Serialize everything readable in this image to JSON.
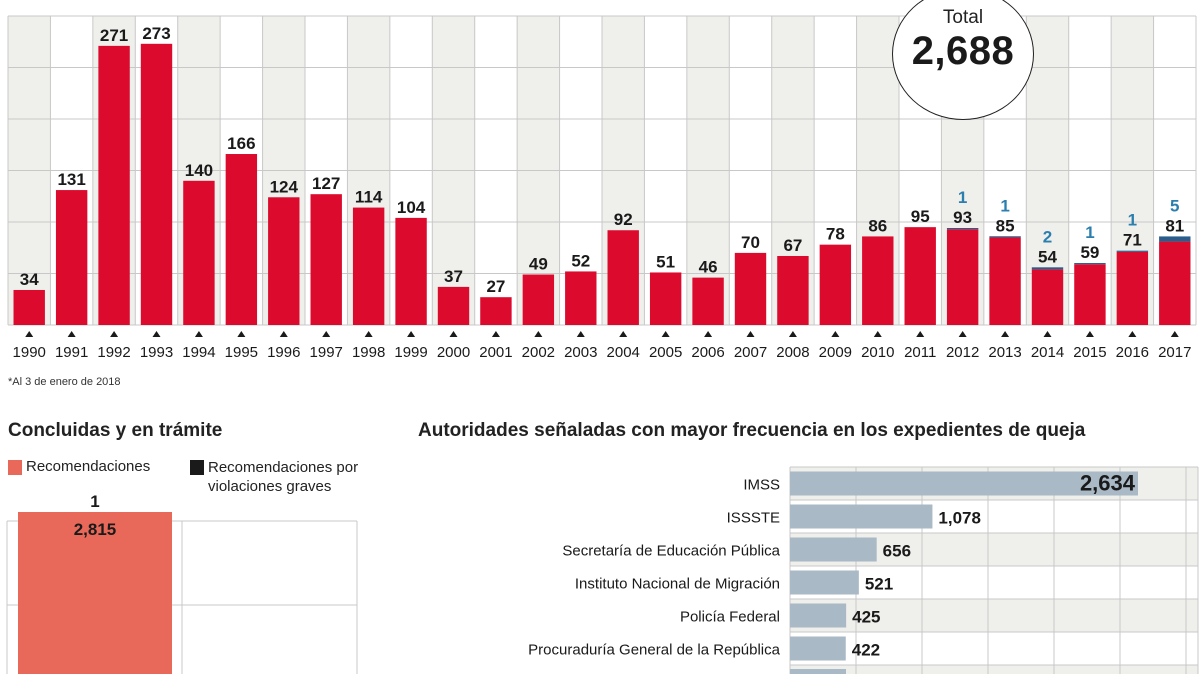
{
  "total": {
    "label": "Total",
    "value": "2,688"
  },
  "footnote": "*Al 3 de enero de 2018",
  "colors": {
    "bar_red": "#dc0a2d",
    "bar_blue": "#2a5d8a",
    "secondary_label": "#2b7fae",
    "recommend_salmon": "#e8695a",
    "grave_black": "#1a1a1a",
    "hbar_gray": "#a9b9c6",
    "grid": "#c8c8c8",
    "shade": "#efefeb"
  },
  "left_panel": {
    "title": "Concluidas y en trámite",
    "legend": [
      {
        "label": "Recomendaciones",
        "color": "#e8695a"
      },
      {
        "label": "Recomendaciones por violaciones graves",
        "color": "#1a1a1a"
      }
    ]
  },
  "right_panel": {
    "title": "Autoridades señaladas con mayor frecuencia en los expedientes de queja"
  },
  "chart_data": [
    {
      "type": "bar",
      "title": "",
      "xlabel": "",
      "ylabel": "",
      "ylim": [
        0,
        300
      ],
      "grid": true,
      "categories": [
        "1990",
        "1991",
        "1992",
        "1993",
        "1994",
        "1995",
        "1996",
        "1997",
        "1998",
        "1999",
        "2000",
        "2001",
        "2002",
        "2003",
        "2004",
        "2005",
        "2006",
        "2007",
        "2008",
        "2009",
        "2010",
        "2011",
        "2012",
        "2013",
        "2014",
        "2015",
        "2016",
        "2017"
      ],
      "series": [
        {
          "name": "Recomendaciones",
          "values": [
            34,
            131,
            271,
            273,
            140,
            166,
            124,
            127,
            114,
            104,
            37,
            27,
            49,
            52,
            92,
            51,
            46,
            70,
            67,
            78,
            86,
            95,
            93,
            85,
            54,
            59,
            71,
            81
          ]
        },
        {
          "name": "Recomendaciones por violaciones graves",
          "values": [
            0,
            0,
            0,
            0,
            0,
            0,
            0,
            0,
            0,
            0,
            0,
            0,
            0,
            0,
            0,
            0,
            0,
            0,
            0,
            0,
            0,
            0,
            1,
            1,
            2,
            1,
            1,
            5
          ]
        }
      ],
      "annotations": [
        {
          "text": "Total 2,688"
        }
      ]
    },
    {
      "type": "bar",
      "title": "Concluidas y en trámite",
      "categories": [
        "Recomendaciones",
        "Recomendaciones por violaciones graves"
      ],
      "series": [
        {
          "name": "Recomendaciones",
          "values": [
            2815
          ]
        },
        {
          "name": "Recomendaciones por violaciones graves",
          "values": [
            1
          ]
        }
      ],
      "data_labels": [
        "2,815",
        "1"
      ],
      "grid": true
    },
    {
      "type": "bar",
      "orientation": "horizontal",
      "title": "Autoridades señaladas con mayor frecuencia en los expedientes de queja",
      "categories": [
        "IMSS",
        "ISSSTE",
        "Secretaría de Educación Pública",
        "Instituto Nacional de Migración",
        "Policía Federal",
        "Procuraduría General de la República"
      ],
      "values": [
        2634,
        1078,
        656,
        521,
        425,
        422
      ],
      "data_labels": [
        "2,634",
        "1,078",
        "656",
        "521",
        "425",
        "422"
      ],
      "xlim": [
        0,
        3000
      ],
      "grid": true
    }
  ]
}
